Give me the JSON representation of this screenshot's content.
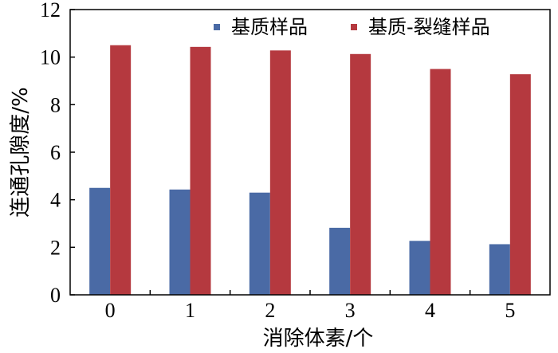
{
  "chart_data": {
    "type": "bar",
    "categories": [
      "0",
      "1",
      "2",
      "3",
      "4",
      "5"
    ],
    "series": [
      {
        "name": "基质样品",
        "values": [
          4.5,
          4.43,
          4.3,
          2.82,
          2.27,
          2.13
        ],
        "color": "#4a6aa5"
      },
      {
        "name": "基质-裂缝样品",
        "values": [
          10.5,
          10.43,
          10.28,
          10.13,
          9.5,
          9.28
        ],
        "color": "#b5393f"
      }
    ],
    "xlabel": "消除体素/个",
    "ylabel": "连通孔隙度/%",
    "ylim": [
      0,
      12
    ],
    "yticks": [
      "0",
      "2",
      "4",
      "6",
      "8",
      "10",
      "12"
    ],
    "legend": "top-right",
    "grid": false
  }
}
